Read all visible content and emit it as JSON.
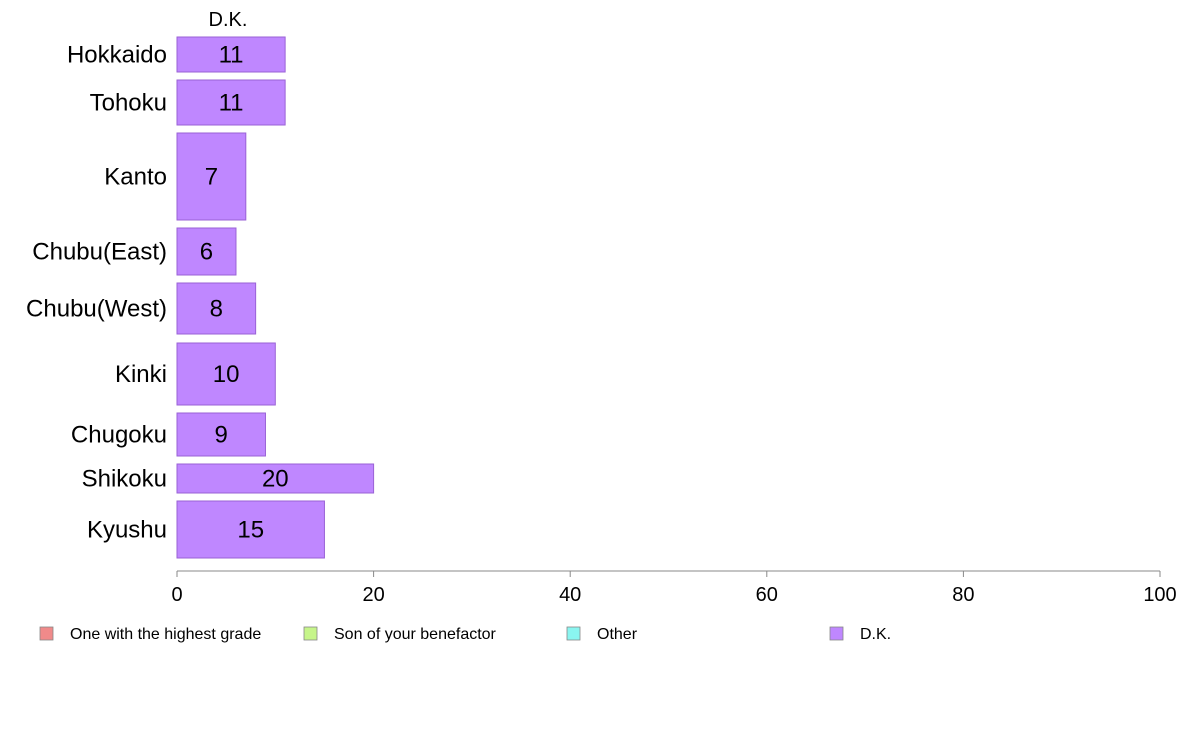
{
  "chart_data": {
    "type": "bar",
    "orientation": "horizontal",
    "stacked": true,
    "column_header": "D.K.",
    "categories": [
      "Hokkaido",
      "Tohoku",
      "Kanto",
      "Chubu(East)",
      "Chubu(West)",
      "Kinki",
      "Chugoku",
      "Shikoku",
      "Kyushu"
    ],
    "series": [
      {
        "name": "D.K.",
        "values": [
          11,
          11,
          7,
          6,
          8,
          10,
          9,
          20,
          15
        ],
        "color": "#bf87ff"
      }
    ],
    "xlim": [
      0,
      100
    ],
    "xticks": [
      "0",
      "20",
      "40",
      "60",
      "80",
      "100"
    ],
    "grid": false,
    "legend": {
      "placement": "bottom",
      "items": [
        {
          "label": "One with the highest grade",
          "color": "#f08a8a"
        },
        {
          "label": "Son of your benefactor",
          "color": "#c6f58a"
        },
        {
          "label": "Other",
          "color": "#8af5f0"
        },
        {
          "label": "D.K.",
          "color": "#bf87ff"
        }
      ]
    },
    "colors": {
      "bar_stroke": "#9a62d6",
      "axis": "#888888"
    }
  }
}
